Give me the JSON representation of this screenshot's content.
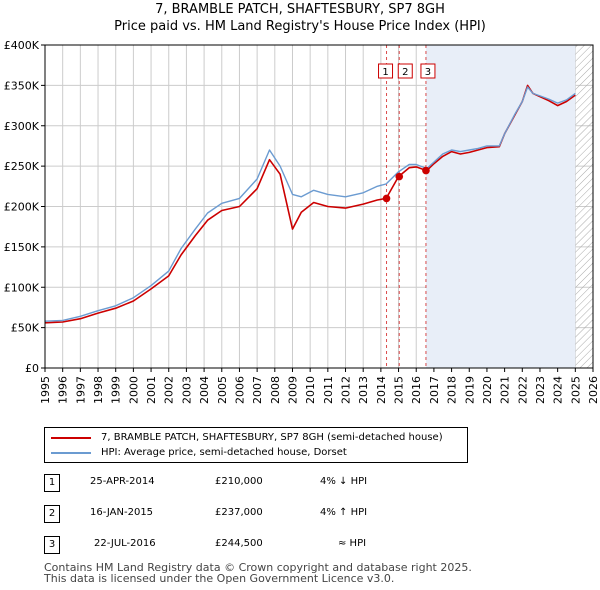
{
  "title_line1": "7, BRAMBLE PATCH, SHAFTESBURY, SP7 8GH",
  "title_line2": "Price paid vs. HM Land Registry's House Price Index (HPI)",
  "legend": {
    "property": "7, BRAMBLE PATCH, SHAFTESBURY, SP7 8GH (semi-detached house)",
    "hpi": "HPI: Average price, semi-detached house, Dorset"
  },
  "colors": {
    "property": "#cc0000",
    "hpi": "#6b9bd1",
    "shade": "#e8eef8",
    "grid": "#cccccc"
  },
  "transactions": [
    {
      "label": "1",
      "date": "25-APR-2014",
      "price": "£210,000",
      "relation": "4% ↓ HPI"
    },
    {
      "label": "2",
      "date": "16-JAN-2015",
      "price": "£237,000",
      "relation": "4% ↑ HPI"
    },
    {
      "label": "3",
      "date": "22-JUL-2016",
      "price": "£244,500",
      "relation": "≈ HPI"
    }
  ],
  "footer_line1": "Contains HM Land Registry data © Crown copyright and database right 2025.",
  "footer_line2": "This data is licensed under the Open Government Licence v3.0.",
  "chart_data": {
    "type": "line",
    "xlim": [
      1995,
      2026
    ],
    "ylim": [
      0,
      400000
    ],
    "y_ticks": [
      0,
      50000,
      100000,
      150000,
      200000,
      250000,
      300000,
      350000,
      400000
    ],
    "y_tick_labels": [
      "£0",
      "£50K",
      "£100K",
      "£150K",
      "£200K",
      "£250K",
      "£300K",
      "£350K",
      "£400K"
    ],
    "x_ticks": [
      1995,
      1996,
      1997,
      1998,
      1999,
      2000,
      2001,
      2002,
      2003,
      2004,
      2005,
      2006,
      2007,
      2008,
      2009,
      2010,
      2011,
      2012,
      2013,
      2014,
      2015,
      2016,
      2017,
      2018,
      2019,
      2020,
      2021,
      2022,
      2023,
      2024,
      2025,
      2026
    ],
    "shaded_region": [
      2016.55,
      2025.0
    ],
    "hatched_region": [
      2025.0,
      2026
    ],
    "series": [
      {
        "name": "hpi",
        "label": "HPI: Average price, semi-detached house, Dorset",
        "x": [
          1995,
          1996,
          1997,
          1998,
          1999,
          2000,
          2001,
          2002,
          2002.7,
          2003.5,
          2004.2,
          2005,
          2006,
          2007,
          2007.7,
          2008.3,
          2009,
          2009.5,
          2010.2,
          2011,
          2012,
          2013,
          2013.8,
          2014.3,
          2015,
          2015.6,
          2016,
          2016.6,
          2017,
          2017.5,
          2018,
          2018.5,
          2019,
          2019.5,
          2020,
          2020.7,
          2021,
          2021.6,
          2022,
          2022.3,
          2022.6,
          2023,
          2023.5,
          2024,
          2024.5,
          2025
        ],
        "y": [
          58000,
          59000,
          64000,
          71000,
          77000,
          87000,
          102000,
          120000,
          148000,
          172000,
          192000,
          204000,
          210000,
          234000,
          270000,
          250000,
          215000,
          212000,
          220000,
          215000,
          212000,
          217000,
          225000,
          228000,
          243000,
          252000,
          252000,
          247000,
          255000,
          265000,
          270000,
          268000,
          270000,
          272000,
          275000,
          275000,
          290000,
          315000,
          330000,
          348000,
          340000,
          337000,
          333000,
          328000,
          332000,
          340000
        ]
      },
      {
        "name": "property",
        "label": "7, BRAMBLE PATCH, SHAFTESBURY, SP7 8GH (semi-detached house)",
        "x": [
          1995,
          1996,
          1997,
          1998,
          1999,
          2000,
          2001,
          2002,
          2002.7,
          2003.5,
          2004.2,
          2005,
          2006,
          2007,
          2007.7,
          2008.3,
          2009,
          2009.5,
          2010.2,
          2011,
          2012,
          2013,
          2013.8,
          2014.3,
          2015,
          2015.6,
          2016,
          2016.6,
          2017,
          2017.5,
          2018,
          2018.5,
          2019,
          2019.5,
          2020,
          2020.7,
          2021,
          2021.6,
          2022,
          2022.3,
          2022.6,
          2023,
          2023.5,
          2024,
          2024.5,
          2025
        ],
        "y": [
          56000,
          57000,
          61000,
          68000,
          74000,
          83000,
          98000,
          114000,
          140000,
          164000,
          183000,
          195000,
          200000,
          222000,
          258000,
          240000,
          172000,
          193000,
          205000,
          200000,
          198000,
          203000,
          208000,
          210000,
          237000,
          248000,
          249000,
          244500,
          253000,
          262000,
          268000,
          265000,
          267000,
          270000,
          273000,
          274000,
          290000,
          314000,
          330000,
          350000,
          340000,
          336000,
          331000,
          325000,
          330000,
          338000
        ]
      }
    ],
    "sales": [
      {
        "label": "1",
        "x": 2014.32,
        "y": 210000
      },
      {
        "label": "2",
        "x": 2015.04,
        "y": 237000
      },
      {
        "label": "3",
        "x": 2016.55,
        "y": 244500
      }
    ]
  }
}
